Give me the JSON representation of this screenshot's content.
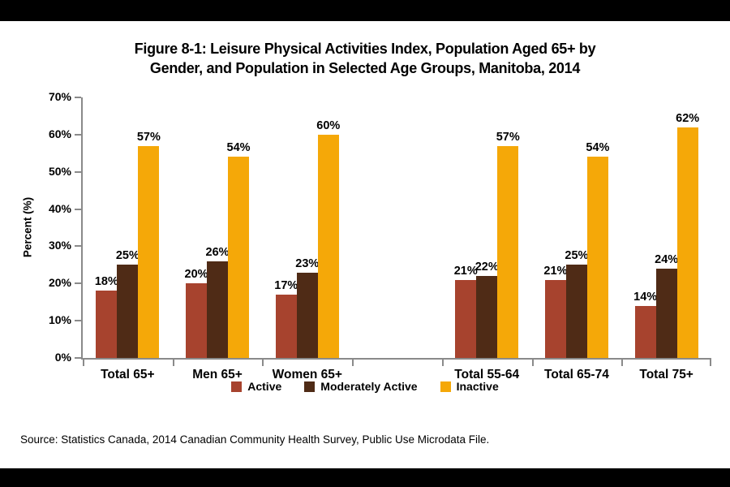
{
  "title_line1": "Figure 8-1: Leisure Physical Activities Index, Population Aged 65+ by",
  "title_line2": "Gender, and Population in Selected Age Groups, Manitoba, 2014",
  "source": "Source: Statistics Canada, 2014 Canadian Community Health Survey, Public Use Microdata File.",
  "colors": {
    "axis": "#8a8a8a",
    "background": "#ffffff",
    "letterbox": "#000000",
    "active": "#a7432e",
    "moderately_active": "#4f2b16",
    "inactive": "#f5a808"
  },
  "chart_data": {
    "type": "bar",
    "title": "Figure 8-1: Leisure Physical Activities Index, Population Aged 65+ by Gender, and Population in Selected Age Groups, Manitoba, 2014",
    "xlabel": "",
    "ylabel": "Percent (%)",
    "ylim": [
      0,
      70
    ],
    "ytick_step": 10,
    "ytick_suffix": "%",
    "grid": false,
    "legend_position": "bottom",
    "categories": [
      "Total 65+",
      "Men 65+",
      "Women 65+",
      "Total 55-64",
      "Total 65-74",
      "Total 75+"
    ],
    "category_slots": [
      0,
      1,
      2,
      4,
      5,
      6
    ],
    "total_slots": 7,
    "data_label_suffix": "%",
    "series": [
      {
        "name": "Active",
        "color": "#a7432e",
        "values": [
          18,
          20,
          17,
          21,
          21,
          14
        ]
      },
      {
        "name": "Moderately Active",
        "color": "#4f2b16",
        "values": [
          25,
          26,
          23,
          22,
          25,
          24
        ]
      },
      {
        "name": "Inactive",
        "color": "#f5a808",
        "values": [
          57,
          54,
          60,
          57,
          54,
          62
        ]
      }
    ]
  }
}
